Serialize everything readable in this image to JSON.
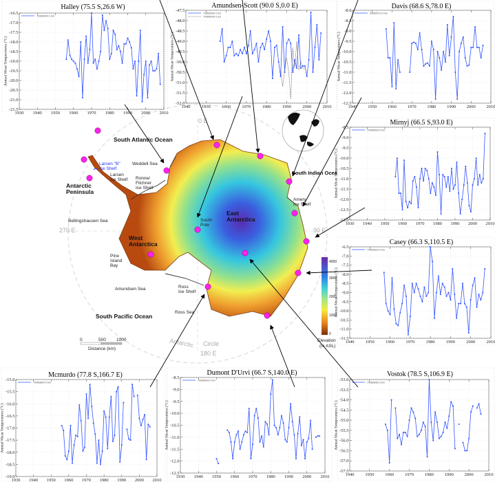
{
  "chart_data": [
    {
      "type": "line",
      "id": "halley",
      "title": "Halley (75.5 S,26.6 W)",
      "ylabel": "Annual Mean Temperatures (°C)",
      "xlim": [
        1930,
        2010
      ],
      "ylim": [
        -21.5,
        -16.5
      ],
      "ystep": 0.5,
      "xstep": 10,
      "legend": [
        "700890000 1 km"
      ],
      "grid": true,
      "series": [
        {
          "name": "700890000 1 km",
          "start": 1956,
          "values": [
            -18.9,
            -17.9,
            -18.7,
            -18.9,
            -19.0,
            -19.1,
            -19.4,
            -19.8,
            -18.0,
            -20.9,
            -18.9,
            -17.7,
            -19.1,
            -18.4,
            -16.5,
            -19.1,
            -18.9,
            -19.4,
            -19.0,
            -18.5,
            -16.6,
            -17.4,
            -16.9,
            -17.3,
            -18.9,
            -18.6,
            -17.4,
            -17.6,
            -18.4,
            -18.2,
            -18.5,
            -19.1,
            -18.1,
            -18.1,
            -17.8,
            -18.0,
            -18.3,
            -19.4,
            -19.0,
            -20.8,
            -19.0,
            -17.4,
            -21.1,
            -19.7,
            -19.0,
            -20.9,
            -19.2,
            -19.0,
            -19.5,
            -19.5,
            -19.4,
            -18.6,
            -20.2
          ]
        }
      ]
    },
    {
      "type": "line",
      "id": "amundsen-scott",
      "title": "Amundsen-Scott (90.0 S,0.0 E)",
      "ylabel": "Annual Mean Temperatures (°C)",
      "xlim": [
        1940,
        2010
      ],
      "ylim": [
        -52.0,
        -47.5
      ],
      "ystep": 0.5,
      "xstep": 10,
      "legend": [
        "700890090 1 km",
        "700890090 1 km"
      ],
      "grid": true,
      "series": [
        {
          "name": "700890090 1 km",
          "start": 1957,
          "values": [
            -49.0,
            -48.4,
            -50.0,
            -49.7,
            -49.3,
            -49.3,
            -49.0,
            -49.7,
            -49.6,
            -49.7,
            -49.4,
            -49.6,
            -49.3,
            -49.6,
            -49.2,
            -48.5,
            -49.6,
            -49.4,
            -49.1,
            -50.0,
            -49.3,
            -49.1,
            -49.4,
            -48.9,
            -48.5,
            -49.0,
            -50.8,
            -49.3,
            -49.2,
            -50.0,
            -50.7,
            -48.3,
            -50.5,
            -49.1,
            -48.9,
            -49.1,
            -50.5,
            -49.9,
            -50.3,
            -48.7,
            -50.3,
            -50.2,
            -50.2,
            -50.7,
            -49.9,
            -47.6,
            -50.5,
            -49.3,
            -48.2,
            -49.9,
            -48.6
          ]
        },
        {
          "name": "700890090 1 km",
          "start": 1987,
          "dashed": true,
          "values": [
            -50.4,
            -51.2,
            -50.4,
            -49.8,
            -50.5,
            -51.8,
            -49.3,
            -50.3,
            -49.0,
            -50.4,
            -50.0,
            -50.3,
            -50.3
          ]
        }
      ]
    },
    {
      "type": "line",
      "id": "davis",
      "title": "Davis (68.6 S,78.0 E)",
      "ylabel": "Annual Mean Temperatures (°C)",
      "xlim": [
        1940,
        2010
      ],
      "ylim": [
        -12.5,
        -8.0
      ],
      "ystep": 0.5,
      "xstep": 10,
      "legend": [
        "500895710 0 km"
      ],
      "grid": true,
      "series": [
        {
          "name": "500895710 0 km",
          "start": 1957,
          "values": [
            -8.9,
            -10.3,
            -10.3,
            -11.7,
            -8.6,
            -11.8,
            -10.4,
            -11.0,
            null,
            null,
            null,
            null,
            -11.0,
            -9.6,
            -9.55,
            -9.6,
            -9.9,
            -9.1,
            -9.9,
            -10.7,
            -10.6,
            -10.55,
            -10.7,
            -9.5,
            -9.9,
            -12.3,
            -10.0,
            -10.3,
            -10.9,
            -10.0,
            -10.5,
            -8.7,
            -10.2,
            -9.3,
            -8.3,
            -11.0,
            -12.3,
            -10.0,
            -9.6,
            -9.3,
            -10.3,
            -10.7,
            -10.65,
            -9.8,
            -9.8,
            -8.8,
            -9.8,
            -9.8,
            -10.3,
            -9.7
          ]
        }
      ]
    },
    {
      "type": "line",
      "id": "mirnyj",
      "title": "Mirnyj (66.5 S,93.0 E)",
      "ylabel": "Annual Mean Temperatures (°C)",
      "xlim": [
        1930,
        2010
      ],
      "ylim": [
        -13.0,
        -8.5
      ],
      "ystep": 0.5,
      "xstep": 10,
      "legend": [
        "700895920 0 km"
      ],
      "grid": true,
      "series": [
        {
          "name": "700895920 0 km",
          "start": 1956,
          "values": [
            -10.9,
            -10.0,
            -11.7,
            -11.7,
            -12.5,
            -10.1,
            -12.1,
            -12.4,
            -12.1,
            -12.2,
            -11.1,
            -10.9,
            -11.4,
            -12.4,
            -11.0,
            -10.5,
            -11.1,
            -10.5,
            -10.6,
            -11.0,
            -11.7,
            -11.2,
            -11.4,
            -11.8,
            -9.7,
            -10.8,
            -12.7,
            -10.8,
            -10.9,
            -11.4,
            -10.9,
            -11.6,
            -10.5,
            -11.5,
            -11.3,
            -10.2,
            -11.7,
            -12.7,
            -12.0,
            -11.3,
            -10.4,
            -11.2,
            -12.3,
            -12.6,
            -11.3,
            -11.0,
            -10.0,
            -11.3,
            -10.8,
            -11.2,
            -11.0,
            -8.8
          ]
        }
      ]
    },
    {
      "type": "line",
      "id": "casey",
      "title": "Casey (66.3 S,110.5 E)",
      "ylabel": "Annual Mean Temperatures (°C)",
      "xlim": [
        1940,
        2010
      ],
      "ylim": [
        -11.5,
        -6.5
      ],
      "ystep": 0.5,
      "xstep": 10,
      "legend": [
        "700896110 0 km"
      ],
      "grid": true,
      "series": [
        {
          "name": "700896110 0 km",
          "start": 1957,
          "values": [
            -7.9,
            -9.6,
            -10.0,
            -10.2,
            -8.2,
            -9.9,
            -10.7,
            -10.8,
            -10.1,
            -9.6,
            -8.6,
            -9.2,
            -11.3,
            -10.3,
            -8.5,
            -9.0,
            -8.5,
            -8.8,
            -9.2,
            -9.5,
            -8.7,
            -9.2,
            -9.0,
            -6.5,
            -7.3,
            -10.4,
            -9.0,
            -8.1,
            -9.1,
            -8.5,
            -8.7,
            -9.2,
            -9.0,
            -9.4,
            -7.7,
            -9.1,
            -10.4,
            -9.6,
            -9.6,
            -8.5,
            -9.6,
            -9.8,
            -11.2,
            -9.4,
            -8.6,
            -8.2,
            -9.8,
            -9.1,
            -9.4,
            -9.0,
            -7.7
          ]
        }
      ]
    },
    {
      "type": "line",
      "id": "vostok",
      "title": "Vostok (78.5 S,106.9 E)",
      "ylabel": "Annual Mean Temperatures (°C)",
      "xlim": [
        1940,
        2010
      ],
      "ylim": [
        -57.5,
        -53.0
      ],
      "ystep": 0.5,
      "xstep": 10,
      "legend": [
        "700896060 3 km"
      ],
      "grid": true,
      "series": [
        {
          "name": "700896060 3 km",
          "start": 1958,
          "values": [
            -55.2,
            -55.5,
            -57.1,
            -54.0,
            null,
            -54.4,
            -55.9,
            -55.7,
            -56.2,
            -55.6,
            -55.6,
            -55.8,
            -55.0,
            -54.4,
            -54.6,
            -54.9,
            -55.8,
            -55.7,
            -55.5,
            -55.1,
            -55.3,
            -56.8,
            -53.0,
            -55.1,
            -56.0,
            -54.6,
            -55.1,
            -55.9,
            -55.8,
            -55.6,
            -55.1,
            -55.4,
            -54.8,
            -54.1,
            -54.3,
            -56.4,
            null,
            -55.2,
            null,
            -56.1,
            -56.5,
            -56.5,
            -55.9,
            -54.6,
            -54.3,
            null,
            -54.4,
            -54.2,
            -54.7
          ]
        }
      ]
    },
    {
      "type": "line",
      "id": "dumont-durville",
      "title": "Dumont D'Urvi (66.7 S,140.0 E)",
      "ylabel": "Annual Mean Temperatures (°C)",
      "xlim": [
        1930,
        2010
      ],
      "ylim": [
        -12.5,
        -8.5
      ],
      "ystep": 0.5,
      "xstep": 10,
      "legend": [
        "700896420 0 km"
      ],
      "grid": true,
      "series": [
        {
          "name": "700896420 0 km",
          "start": 1950,
          "values": [
            -11.9,
            -12.1,
            null,
            null,
            null,
            null,
            -10.7,
            -10.8,
            -11.2,
            -11.9,
            -11.2,
            -10.9,
            -10.75,
            -11.5,
            -11.2,
            -10.9,
            -10.75,
            -10.8,
            -9.8,
            -11.9,
            -11.3,
            -10.1,
            -9.8,
            -10.2,
            -11.2,
            -10.95,
            -11.4,
            -10.35,
            -10.45,
            -10.9,
            -9.2,
            -8.6,
            -10.5,
            -10.6,
            -10.9,
            -10.6,
            -10.1,
            -10.4,
            -11.1,
            -11.2,
            -10.6,
            -9.6,
            -10.35,
            -10.9,
            -11.9,
            -10.85,
            -10.15,
            -11.35,
            -11.1,
            -11.9,
            -11.2,
            -11.05,
            -10.3,
            -11.5,
            null,
            -11.0,
            -10.95,
            -10.95
          ]
        }
      ]
    },
    {
      "type": "line",
      "id": "mcmurdo",
      "title": "Mcmurdo (77.8 S,166.7 E)",
      "ylabel": "Annual Mean Temperatures (°C)",
      "xlim": [
        1930,
        2010
      ],
      "ylim": [
        -19.0,
        -15.0
      ],
      "ystep": 0.5,
      "xstep": 10,
      "legend": [
        "700896640 0 km"
      ],
      "grid": true,
      "series": [
        {
          "name": "700896640 0 km",
          "start": 1956,
          "values": [
            -16.9,
            -17.1,
            -18.15,
            -18.3,
            -17.95,
            -16.9,
            -18.45,
            -17.7,
            -17.3,
            -17.35,
            -16.05,
            -16.7,
            -17.95,
            -17.8,
            -15.6,
            -16.6,
            -15.2,
            -16.1,
            -16.8,
            -17.25,
            -18.45,
            -17.5,
            -18.5,
            -17.95,
            -16.3,
            -16.55,
            -17.85,
            -16.55,
            -15.7,
            -17.55,
            -17.3,
            -15.5,
            -15.3,
            -18.4,
            -17.7,
            -15.95,
            null,
            -17.05,
            -17.45,
            -17.5,
            -15.2,
            -15.7,
            null,
            -15.65,
            -16.6,
            -16.9,
            -16.65,
            -16.45,
            -18.3,
            -16.85,
            -16.95
          ]
        }
      ]
    }
  ],
  "colors": {
    "series": "#3355ff",
    "series2": "#666666",
    "station": "#ff22ee"
  },
  "map": {
    "labels": {
      "south_atlantic": "South Atlantic Ocean",
      "larsen_b_1": "Larsen \"B\"",
      "larsen_b_2": "Ice Shelf",
      "weddell": "Weddell Sea",
      "larsen_1": "Larsen",
      "larsen_2": "Ice Shelf",
      "ronne_1": "Ronne/",
      "ronne_2": "Filchner",
      "ronne_3": "Ice Shelf",
      "peninsula_1": "Antarctic",
      "peninsula_2": "Peninsula",
      "bellingshausen": "Bellingshausen Sea",
      "south_pole_1": "South",
      "south_pole_2": "Pole",
      "east_1": "East",
      "east_2": "Antarctica",
      "west_1": "West",
      "west_2": "Antarctica",
      "pine_1": "Pine",
      "pine_2": "Island",
      "pine_3": "Bay",
      "amundsen_sea": "Amundsen Sea",
      "ross_shelf_1": "Ross",
      "ross_shelf_2": "Ice Shelf",
      "ross_sea": "Ross Sea",
      "south_pacific": "South Pacific Ocean",
      "south_indian": "South Indian Ocea",
      "amery_1": "Amery",
      "amery_2": "Ice Shelf",
      "lon_0": "0 E",
      "lon_90": "90 E",
      "lon_180": "180 E",
      "lon_270": "270 E",
      "circle_1": "Antarctic",
      "circle_2": "Circle"
    },
    "scale": {
      "ticks": [
        "0",
        "500",
        "1000"
      ],
      "label": "Distance (km)"
    },
    "colorbar": {
      "ticks": [
        "4000",
        "3000",
        "2000",
        "1000",
        "0"
      ],
      "label_1": "Elevation",
      "label_2": "(m ASL)"
    }
  }
}
